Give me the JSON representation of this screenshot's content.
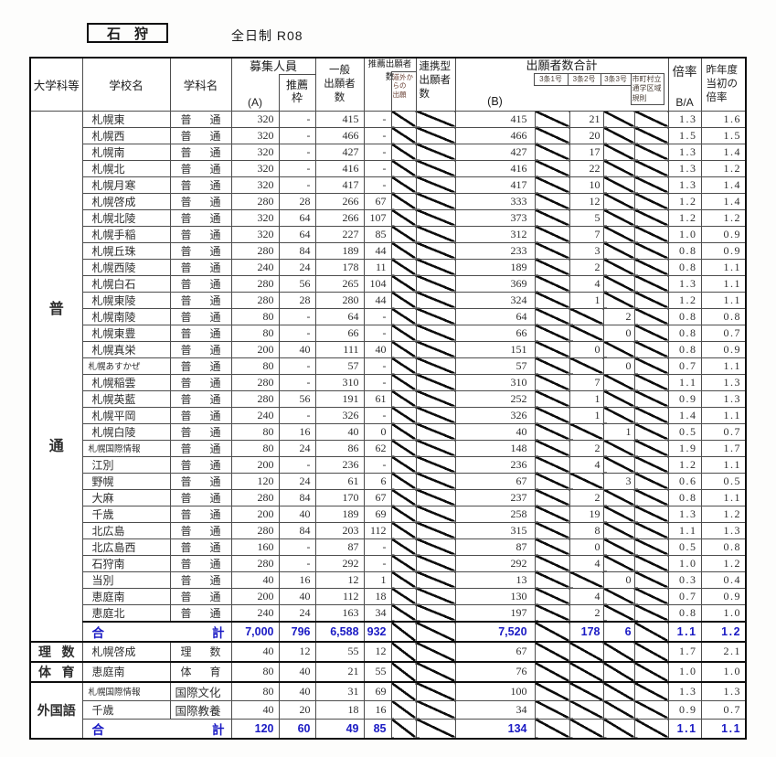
{
  "page": {
    "title": "石　狩",
    "subtitle": "全日制 R08"
  },
  "header": {
    "category": "大学科等",
    "school": "学校名",
    "dept": "学科名",
    "recruit": "募集人員",
    "recruit_a": "(A)",
    "waku": "推薦\n枠",
    "ippan": "一般\n出願者\n数",
    "suisen": "推薦出願者数",
    "dogai": "道外からの\n出願",
    "renkei": "連携型\n出願者\n数",
    "goukei": "出願者数合計",
    "b": "(B)",
    "j1": "3条1号",
    "j2": "3条2号",
    "j3": "3条3号",
    "city": "市町村立\n通学区域\n規則",
    "bairitsu": "倍率",
    "ba": "B/A",
    "prev": "昨年度\n当初の\n倍率"
  },
  "total_label": {
    "left": "合",
    "right": "計"
  },
  "accent_blue": "#1a1ac4",
  "sections": [
    {
      "kind": "tall",
      "label": [
        "普",
        "通"
      ],
      "dept_default": [
        "普",
        "通"
      ],
      "rows": [
        {
          "n": "札幌東",
          "a": "320",
          "w": "-",
          "i": "415",
          "s": "-",
          "b": "415",
          "j2": "21",
          "j3": null,
          "r": "1.3",
          "p": "1.6"
        },
        {
          "n": "札幌西",
          "a": "320",
          "w": "-",
          "i": "466",
          "s": "-",
          "b": "466",
          "j2": "20",
          "j3": null,
          "r": "1.5",
          "p": "1.5"
        },
        {
          "n": "札幌南",
          "a": "320",
          "w": "-",
          "i": "427",
          "s": "-",
          "b": "427",
          "j2": "17",
          "j3": null,
          "r": "1.3",
          "p": "1.4"
        },
        {
          "n": "札幌北",
          "a": "320",
          "w": "-",
          "i": "416",
          "s": "-",
          "b": "416",
          "j2": "22",
          "j3": null,
          "r": "1.3",
          "p": "1.2"
        },
        {
          "n": "札幌月寒",
          "a": "320",
          "w": "-",
          "i": "417",
          "s": "-",
          "b": "417",
          "j2": "10",
          "j3": null,
          "r": "1.3",
          "p": "1.4"
        },
        {
          "n": "札幌啓成",
          "a": "280",
          "w": "28",
          "i": "266",
          "s": "67",
          "b": "333",
          "j2": "12",
          "j3": null,
          "r": "1.2",
          "p": "1.4"
        },
        {
          "n": "札幌北陵",
          "a": "320",
          "w": "64",
          "i": "266",
          "s": "107",
          "b": "373",
          "j2": "5",
          "j3": null,
          "r": "1.2",
          "p": "1.2"
        },
        {
          "n": "札幌手稲",
          "a": "320",
          "w": "64",
          "i": "227",
          "s": "85",
          "b": "312",
          "j2": "7",
          "j3": null,
          "r": "1.0",
          "p": "0.9"
        },
        {
          "n": "札幌丘珠",
          "a": "280",
          "w": "84",
          "i": "189",
          "s": "44",
          "b": "233",
          "j2": "3",
          "j3": null,
          "r": "0.8",
          "p": "0.9"
        },
        {
          "n": "札幌西陵",
          "a": "240",
          "w": "24",
          "i": "178",
          "s": "11",
          "b": "189",
          "j2": "2",
          "j3": null,
          "r": "0.8",
          "p": "1.1"
        },
        {
          "n": "札幌白石",
          "a": "280",
          "w": "56",
          "i": "265",
          "s": "104",
          "b": "369",
          "j2": "4",
          "j3": null,
          "r": "1.3",
          "p": "1.1"
        },
        {
          "n": "札幌東陵",
          "a": "280",
          "w": "28",
          "i": "280",
          "s": "44",
          "b": "324",
          "j2": "1",
          "j3": null,
          "r": "1.2",
          "p": "1.1"
        },
        {
          "n": "札幌南陵",
          "a": "80",
          "w": "-",
          "i": "64",
          "s": "-",
          "b": "64",
          "j2": null,
          "j3": "2",
          "r": "0.8",
          "p": "0.8"
        },
        {
          "n": "札幌東豊",
          "a": "80",
          "w": "-",
          "i": "66",
          "s": "-",
          "b": "66",
          "j2": null,
          "j3": "0",
          "r": "0.8",
          "p": "0.7"
        },
        {
          "n": "札幌真栄",
          "a": "200",
          "w": "40",
          "i": "111",
          "s": "40",
          "b": "151",
          "j2": "0",
          "j3": null,
          "r": "0.8",
          "p": "0.9"
        },
        {
          "n": "札幌あすかぜ",
          "sm": true,
          "a": "80",
          "w": "-",
          "i": "57",
          "s": "-",
          "b": "57",
          "j2": null,
          "j3": "0",
          "r": "0.7",
          "p": "1.1"
        },
        {
          "n": "札幌稲雲",
          "a": "280",
          "w": "-",
          "i": "310",
          "s": "-",
          "b": "310",
          "j2": "7",
          "j3": null,
          "r": "1.1",
          "p": "1.3"
        },
        {
          "n": "札幌英藍",
          "a": "280",
          "w": "56",
          "i": "191",
          "s": "61",
          "b": "252",
          "j2": "1",
          "j3": null,
          "r": "0.9",
          "p": "1.3"
        },
        {
          "n": "札幌平岡",
          "a": "240",
          "w": "-",
          "i": "326",
          "s": "-",
          "b": "326",
          "j2": "1",
          "j3": null,
          "r": "1.4",
          "p": "1.1"
        },
        {
          "n": "札幌白陵",
          "a": "80",
          "w": "16",
          "i": "40",
          "s": "0",
          "b": "40",
          "j2": null,
          "j3": "1",
          "r": "0.5",
          "p": "0.7"
        },
        {
          "n": "札幌国際情報",
          "sm": true,
          "a": "80",
          "w": "24",
          "i": "86",
          "s": "62",
          "b": "148",
          "j2": "2",
          "j3": null,
          "r": "1.9",
          "p": "1.7"
        },
        {
          "n": "江別",
          "a": "200",
          "w": "-",
          "i": "236",
          "s": "-",
          "b": "236",
          "j2": "4",
          "j3": null,
          "r": "1.2",
          "p": "1.1"
        },
        {
          "n": "野幌",
          "a": "120",
          "w": "24",
          "i": "61",
          "s": "6",
          "b": "67",
          "j2": null,
          "j3": "3",
          "r": "0.6",
          "p": "0.5"
        },
        {
          "n": "大麻",
          "a": "280",
          "w": "84",
          "i": "170",
          "s": "67",
          "b": "237",
          "j2": "2",
          "j3": null,
          "r": "0.8",
          "p": "1.1"
        },
        {
          "n": "千歳",
          "a": "200",
          "w": "40",
          "i": "189",
          "s": "69",
          "b": "258",
          "j2": "19",
          "j3": null,
          "r": "1.3",
          "p": "1.2"
        },
        {
          "n": "北広島",
          "a": "280",
          "w": "84",
          "i": "203",
          "s": "112",
          "b": "315",
          "j2": "8",
          "j3": null,
          "r": "1.1",
          "p": "1.3"
        },
        {
          "n": "北広島西",
          "a": "160",
          "w": "-",
          "i": "87",
          "s": "-",
          "b": "87",
          "j2": "0",
          "j3": null,
          "r": "0.5",
          "p": "0.8"
        },
        {
          "n": "石狩南",
          "a": "280",
          "w": "-",
          "i": "292",
          "s": "-",
          "b": "292",
          "j2": "4",
          "j3": null,
          "r": "1.0",
          "p": "1.2"
        },
        {
          "n": "当別",
          "a": "40",
          "w": "16",
          "i": "12",
          "s": "1",
          "b": "13",
          "j2": null,
          "j3": "0",
          "r": "0.3",
          "p": "0.4"
        },
        {
          "n": "恵庭南",
          "a": "200",
          "w": "40",
          "i": "112",
          "s": "18",
          "b": "130",
          "j2": "4",
          "j3": null,
          "r": "0.7",
          "p": "0.9"
        },
        {
          "n": "恵庭北",
          "a": "240",
          "w": "24",
          "i": "163",
          "s": "34",
          "b": "197",
          "j2": "2",
          "j3": null,
          "r": "0.8",
          "p": "1.0"
        }
      ],
      "total": {
        "a": "7,000",
        "w": "796",
        "i": "6,588",
        "s": "932",
        "b": "7,520",
        "j2": "178",
        "j3": "6",
        "r": "1.1",
        "p": "1.2"
      }
    },
    {
      "kind": "inline",
      "label": [
        "理",
        "数"
      ],
      "rows": [
        {
          "n": "札幌啓成",
          "d": [
            "理",
            "数"
          ],
          "a": "40",
          "w": "12",
          "i": "55",
          "s": "12",
          "b": "67",
          "j2": null,
          "j3": null,
          "r": "1.7",
          "p": "2.1"
        }
      ]
    },
    {
      "kind": "inline",
      "label": [
        "体",
        "育"
      ],
      "rows": [
        {
          "n": "恵庭南",
          "d": [
            "体",
            "育"
          ],
          "a": "80",
          "w": "40",
          "i": "21",
          "s": "55",
          "b": "76",
          "j2": null,
          "j3": null,
          "r": "1.0",
          "p": "1.0"
        }
      ]
    },
    {
      "kind": "block",
      "label": "外国語",
      "rows": [
        {
          "n": "札幌国際情報",
          "sm": true,
          "d": "国際文化",
          "a": "80",
          "w": "40",
          "i": "31",
          "s": "69",
          "b": "100",
          "j2": null,
          "j3": null,
          "r": "1.3",
          "p": "1.3"
        },
        {
          "n": "千歳",
          "d": "国際教養",
          "a": "40",
          "w": "20",
          "i": "18",
          "s": "16",
          "b": "34",
          "j2": null,
          "j3": null,
          "r": "0.9",
          "p": "0.7"
        }
      ],
      "total": {
        "a": "120",
        "w": "60",
        "i": "49",
        "s": "85",
        "b": "134",
        "j2": null,
        "j3": null,
        "r": "1.1",
        "p": "1.1"
      }
    }
  ]
}
